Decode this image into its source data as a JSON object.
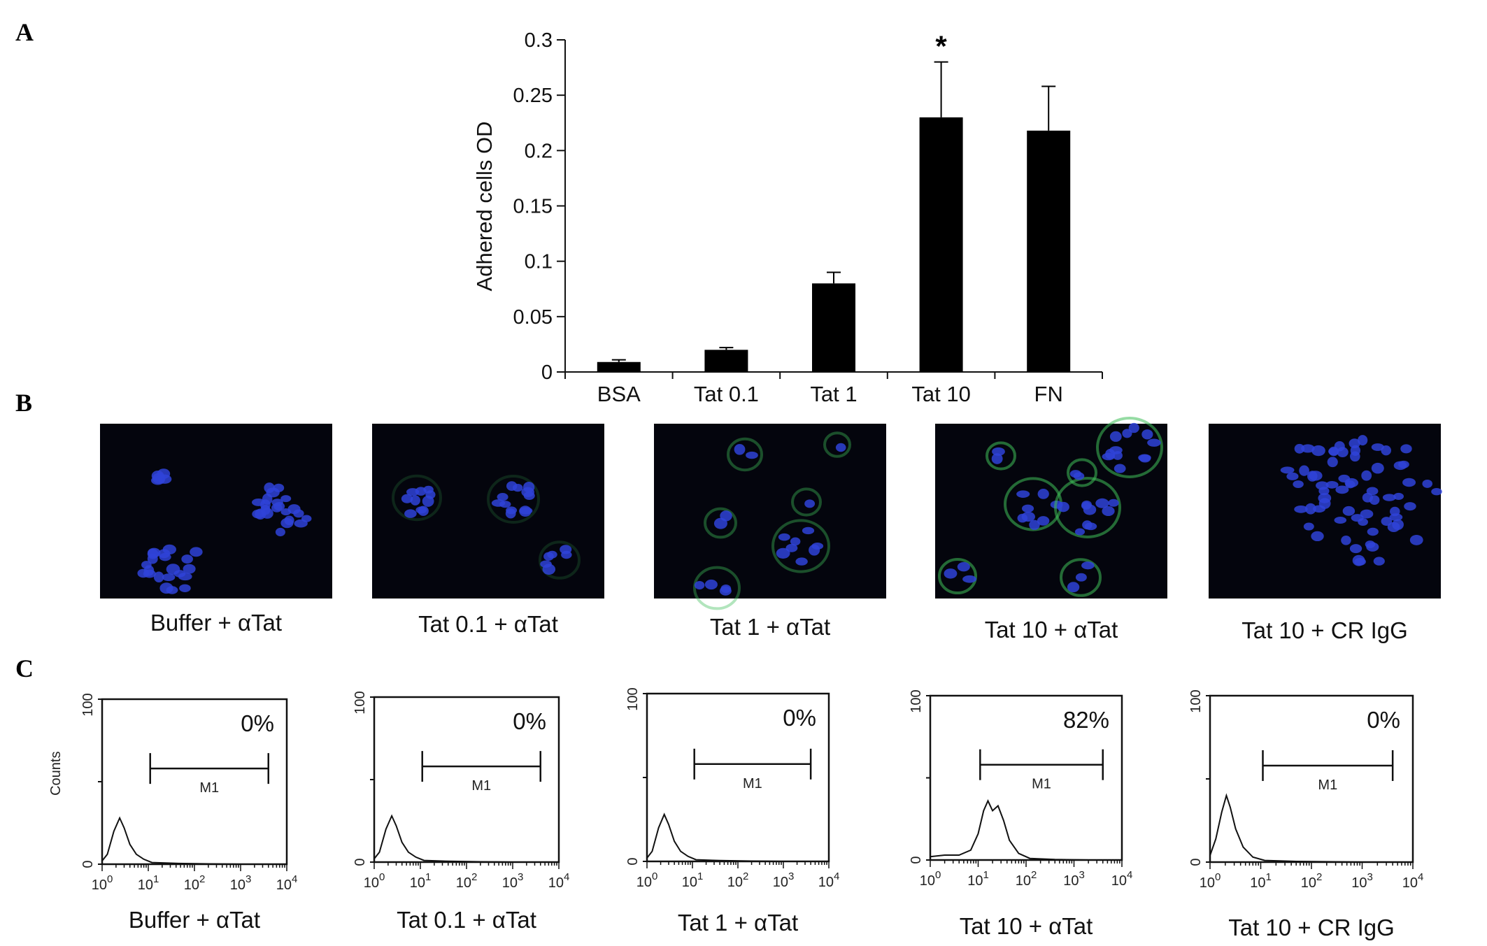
{
  "panel_labels": {
    "a": "A",
    "b": "B",
    "c": "C"
  },
  "colors": {
    "bar": "#000000",
    "micro_bg": "#04050d",
    "nucleus": "#2f43d8",
    "membrane": "#3fbf5a"
  },
  "chart_data": [
    {
      "type": "bar",
      "title": "",
      "xlabel": "",
      "ylabel": "Adhered cells OD",
      "ylim": [
        0,
        0.3
      ],
      "yticks": [
        "0",
        "0.05",
        "0.1",
        "0.15",
        "0.2",
        "0.25",
        "0.3"
      ],
      "categories": [
        "BSA",
        "Tat 0.1",
        "Tat 1",
        "Tat 10",
        "FN"
      ],
      "values": [
        0.009,
        0.02,
        0.08,
        0.23,
        0.218
      ],
      "errors": [
        0.002,
        0.002,
        0.01,
        0.05,
        0.04
      ],
      "annotations": [
        {
          "category": "Tat 10",
          "text": "*"
        }
      ],
      "grid": false,
      "legend": "none"
    },
    {
      "type": "line",
      "panel": "C",
      "ylabel": "Counts",
      "ylim": [
        0,
        100
      ],
      "xscale": "log",
      "xlim": [
        1,
        10000
      ],
      "gate_label": "M1",
      "histograms": [
        {
          "caption": "Buffer + αTat",
          "percent": "0%",
          "gate": [
            11,
            4000
          ],
          "profile": "low"
        },
        {
          "caption": "Tat 0.1 + αTat",
          "percent": "0%",
          "gate": [
            11,
            4000
          ],
          "profile": "low"
        },
        {
          "caption": "Tat 1 + αTat",
          "percent": "0%",
          "gate": [
            11,
            4000
          ],
          "profile": "low"
        },
        {
          "caption": "Tat 10 + αTat",
          "percent": "82%",
          "gate": [
            11,
            4000
          ],
          "profile": "shifted"
        },
        {
          "caption": "Tat 10 + CR IgG",
          "percent": "0%",
          "gate": [
            11,
            4000
          ],
          "profile": "control"
        }
      ]
    }
  ],
  "micrographs": [
    {
      "caption": "Buffer + αTat"
    },
    {
      "caption": "Tat 0.1 + αTat"
    },
    {
      "caption": "Tat 1 + αTat"
    },
    {
      "caption": "Tat 10 + αTat"
    },
    {
      "caption": "Tat 10 + CR IgG"
    }
  ]
}
